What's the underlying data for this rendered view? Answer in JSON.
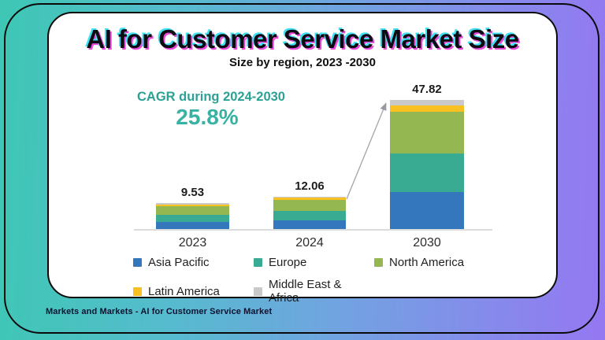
{
  "header": {
    "title": "AI for Customer Service Market Size",
    "subtitle": "Size by region, 2023 -2030"
  },
  "cagr": {
    "label": "CAGR during 2024-2030",
    "value": "25.8%"
  },
  "footer": {
    "text": "Markets and Markets - AI  for Customer Service Market"
  },
  "theme": {
    "background_gradient": [
      "#3ec7b4",
      "#9577f2"
    ],
    "accent_teal": "#2ba195",
    "glitch_cyan": "#43e0f2",
    "glitch_magenta": "#e84ad8",
    "arrow_gray": "#9a9aa2"
  },
  "chart_data": {
    "type": "bar",
    "stacked": true,
    "title": "AI for Customer Service Market Size",
    "subtitle": "Size by region, 2023 -2030",
    "categories": [
      "2023",
      "2024",
      "2030"
    ],
    "totals": [
      9.53,
      12.06,
      47.82
    ],
    "total_labels": [
      "9.53",
      "12.06",
      "47.82"
    ],
    "series": [
      {
        "name": "Asia Pacific",
        "color": "#3577bc",
        "values": [
          2.6,
          3.2,
          13.7
        ]
      },
      {
        "name": "Europe",
        "color": "#3aab93",
        "values": [
          2.6,
          3.4,
          14.3
        ]
      },
      {
        "name": "North America",
        "color": "#94b751",
        "values": [
          3.2,
          4.3,
          15.3
        ]
      },
      {
        "name": "Latin America",
        "color": "#f8c021",
        "values": [
          0.7,
          0.8,
          2.6
        ]
      },
      {
        "name": "Middle East & Africa",
        "color": "#c9c9c9",
        "values": [
          0.43,
          0.36,
          1.92
        ]
      }
    ],
    "xlabel": "",
    "ylabel": "",
    "ylim": [
      0,
      50
    ],
    "grid": false,
    "value_labels_shown": true,
    "legend_position": "bottom",
    "annotations": [
      {
        "text": "CAGR during 2024-2030",
        "value": "25.8%"
      },
      {
        "type": "arrow",
        "from": "top of 2024 bar",
        "to": "top of 2030 bar"
      }
    ]
  }
}
